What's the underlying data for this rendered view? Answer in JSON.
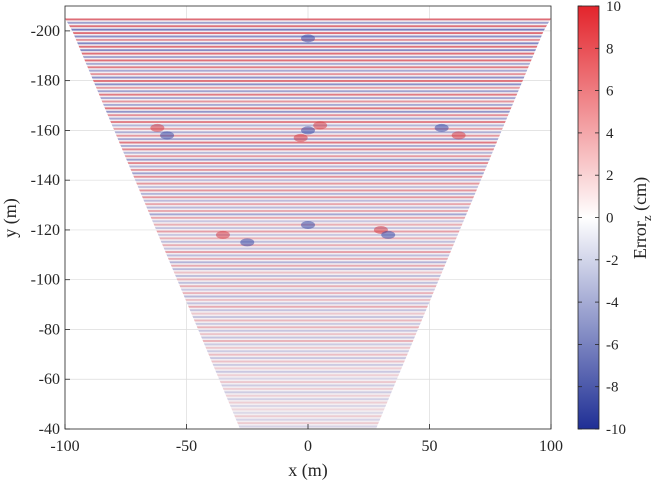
{
  "chart_data": {
    "type": "heatmap",
    "title": "",
    "xlabel": "x (m)",
    "ylabel": "y (m)",
    "xlim": [
      -100,
      100
    ],
    "ylim": [
      -40,
      -210
    ],
    "y_axis_reversed": true,
    "x_ticks": [
      -100,
      -50,
      0,
      50,
      100
    ],
    "y_ticks": [
      -200,
      -180,
      -160,
      -140,
      -120,
      -100,
      -80,
      -60,
      -40
    ],
    "grid": true,
    "coverage_region": {
      "description": "wedge-shaped swath, wide at top and narrow at bottom",
      "polygon": [
        [
          -100,
          -205
        ],
        [
          100,
          -205
        ],
        [
          97,
          -200
        ],
        [
          28,
          -40
        ],
        [
          -28,
          -40
        ],
        [
          -97,
          -200
        ]
      ]
    },
    "pattern": "horizontal striped error bands with alternating red/blue, stronger at far range (top) and fading toward near range (bottom)",
    "colorbar": {
      "label_main": "Error",
      "label_sub": "z",
      "label_unit": " (cm)",
      "min": -10,
      "max": 10,
      "ticks": [
        10,
        8,
        6,
        4,
        2,
        0,
        -2,
        -4,
        -6,
        -8,
        -10
      ],
      "colormap": [
        "#1f2f95",
        "#ffffff",
        "#e3242b"
      ]
    }
  }
}
